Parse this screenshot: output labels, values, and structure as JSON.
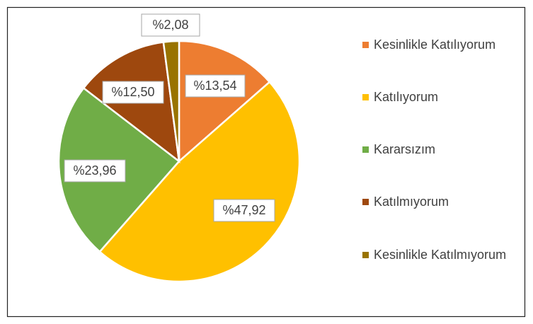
{
  "chart_data": {
    "type": "pie",
    "categories": [
      "Kesinlikle Katılıyorum",
      "Katılıyorum",
      "Kararsızım",
      "Katılmıyorum",
      "Kesinlikle Katılmıyorum"
    ],
    "values": [
      13.54,
      47.92,
      23.96,
      12.5,
      2.08
    ],
    "value_labels": [
      "%13,54",
      "%47,92",
      "%23,96",
      "%12,50",
      "%2,08"
    ],
    "colors": [
      "#ED7D31",
      "#FFC000",
      "#70AD47",
      "#9E480E",
      "#997300"
    ],
    "legend": "right"
  }
}
